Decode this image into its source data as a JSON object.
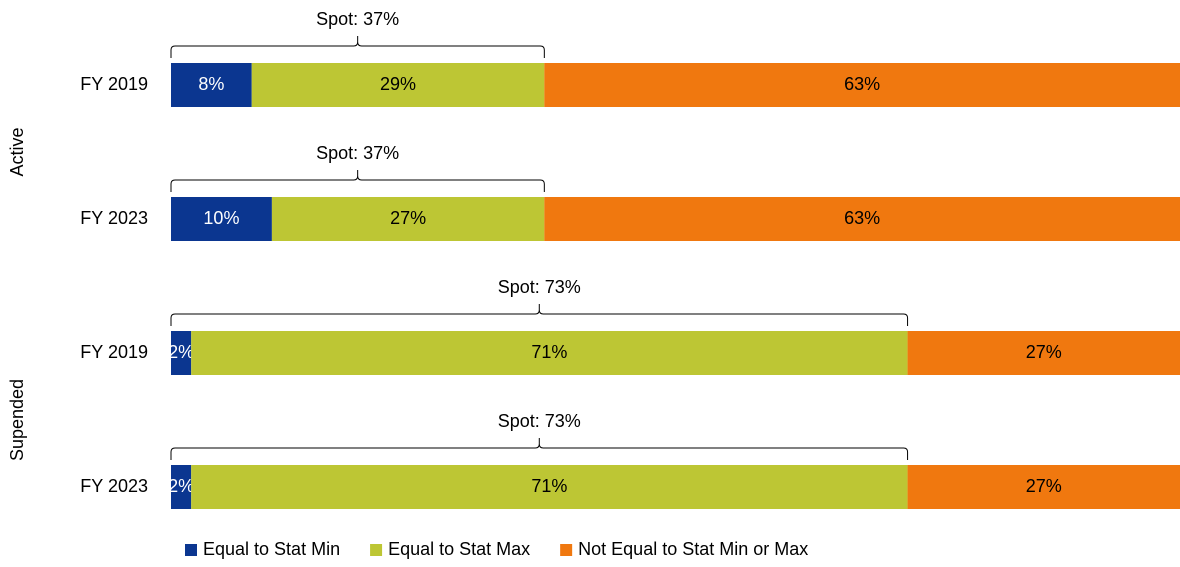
{
  "chart_data": {
    "type": "stacked-bar-horizontal",
    "groups": [
      {
        "label": "Active",
        "categories": [
          "FY 2019",
          "FY 2023"
        ]
      },
      {
        "label": "Supended",
        "categories": [
          "FY 2019",
          "FY 2023"
        ]
      }
    ],
    "xlim": [
      0,
      100
    ],
    "series": [
      {
        "name": "Equal to Stat Min",
        "color": "#0b3690",
        "label_color": "#ffffff",
        "values": [
          8,
          10,
          2,
          2
        ],
        "value_labels": [
          "8%",
          "10%",
          "2%",
          "2%"
        ]
      },
      {
        "name": "Equal to Stat Max",
        "color": "#bdc634",
        "label_color": "#000000",
        "values": [
          29,
          27,
          71,
          71
        ],
        "value_labels": [
          "29%",
          "27%",
          "71%",
          "71%"
        ]
      },
      {
        "name": "Not Equal to Stat Min or Max",
        "color": "#f0780f",
        "label_color": "#000000",
        "values": [
          63,
          63,
          27,
          27
        ],
        "value_labels": [
          "63%",
          "63%",
          "27%",
          "27%"
        ]
      }
    ],
    "annotations": [
      "Spot: 37%",
      "Spot: 37%",
      "Spot: 73%",
      "Spot: 73%"
    ],
    "legend": "bottom"
  }
}
